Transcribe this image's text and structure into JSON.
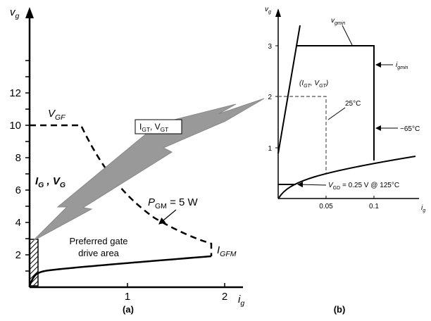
{
  "panel_a": {
    "y_axis_label": [
      "v",
      "g"
    ],
    "y_ticks": [
      "2",
      "4",
      "6",
      "8",
      "10",
      "12"
    ],
    "x_ticks": [
      "1",
      "2"
    ],
    "x_axis_label": [
      "i",
      "g"
    ],
    "vgf_label": [
      "V",
      "GF"
    ],
    "ig_vg_label": [
      "I",
      "G",
      " , ",
      "V",
      "G"
    ],
    "pgm_label": [
      "P",
      "GM",
      " = 5 W"
    ],
    "igt_vgt_box": [
      "I",
      "GT",
      ", V",
      "GT"
    ],
    "preferred_area": [
      "Preferred gate",
      "drive area"
    ],
    "igfm_label": [
      "I",
      "GFM"
    ],
    "caption": "(a)"
  },
  "panel_b": {
    "y_axis_label": [
      "v",
      "g"
    ],
    "y_ticks": [
      "1",
      "2",
      "3"
    ],
    "x_ticks": [
      "0.05",
      "0.1"
    ],
    "x_axis_label": [
      "i",
      "g"
    ],
    "vgmin_label": [
      "v",
      "gmin"
    ],
    "igmin_label": [
      "i",
      "gmin"
    ],
    "igt_vgt_label": [
      "(I",
      "GT",
      ", V",
      "GT",
      ")"
    ],
    "temp_25": "25°C",
    "temp_m65": "−65°C",
    "vgd_label": [
      "V",
      "GD",
      " = 0.25 V @ 125°C"
    ],
    "caption": "(b)"
  }
}
